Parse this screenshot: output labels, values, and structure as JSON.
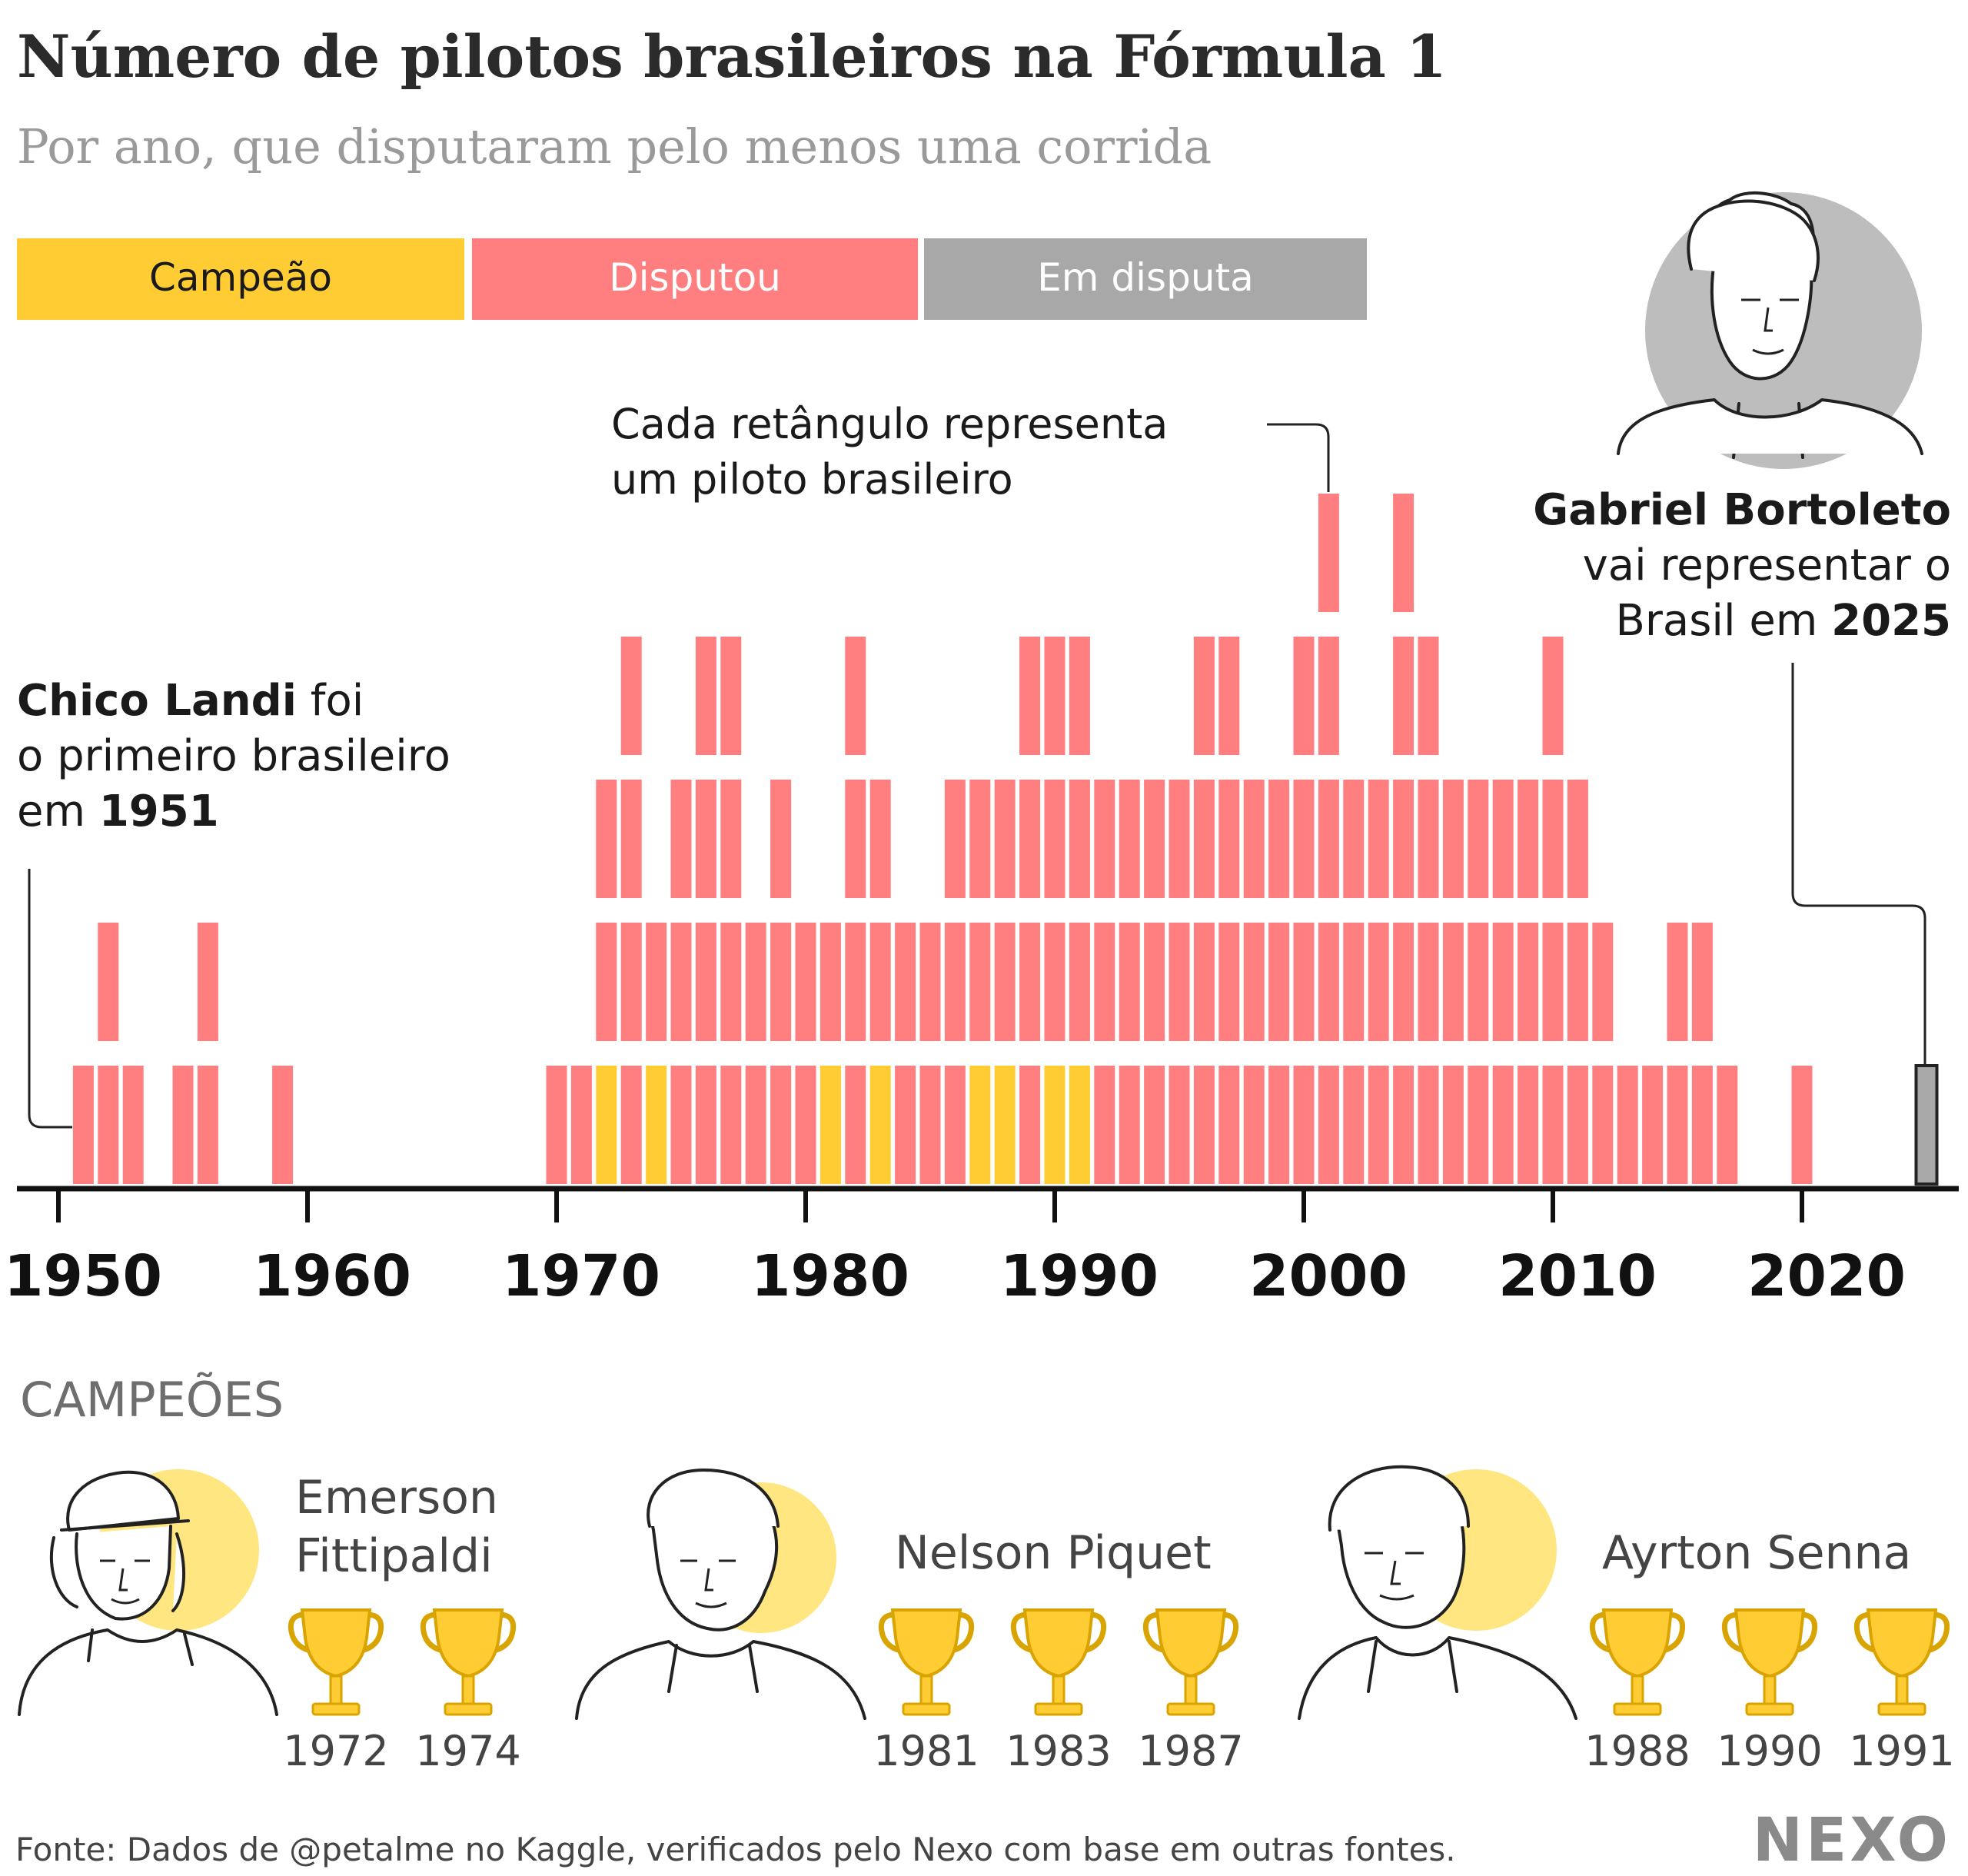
{
  "title": "Número de pilotos brasileiros na Fórmula 1",
  "subtitle": "Por ano, que disputaram pelo menos uma corrida",
  "legend": [
    {
      "label": "Campeão",
      "color": "#FFCC33",
      "text_color": "#1a1a1a"
    },
    {
      "label": "Disputou",
      "color": "#FF7F80",
      "text_color": "#ffffff"
    },
    {
      "label": "Em disputa",
      "color": "#A8A8A8",
      "text_color": "#ffffff"
    }
  ],
  "colors": {
    "champion": "#FFCC33",
    "raced": "#FF7F80",
    "ongoing": "#A8A8A8",
    "axis": "#111111",
    "halo_gray": "#BDBDBD",
    "halo_yellow": "#FFE680"
  },
  "annotations": {
    "each_rect_line1": "Cada retângulo representa",
    "each_rect_line2": "um piloto brasileiro",
    "landi_name": "Chico Landi",
    "landi_rest1": " foi",
    "landi_line2": "o primeiro brasileiro",
    "landi_line3_pre": "em ",
    "landi_year": "1951",
    "bortoleto_name": "Gabriel Bortoleto",
    "bortoleto_line2": "vai representar o",
    "bortoleto_line3_pre": "Brasil em ",
    "bortoleto_year": "2025"
  },
  "champions_heading": "CAMPEÕES",
  "champions": [
    {
      "name_lines": [
        "Emerson",
        "Fittipaldi"
      ],
      "titles": [
        "1972",
        "1974"
      ],
      "icon": "trophy-icon"
    },
    {
      "name_lines": [
        "Nelson Piquet"
      ],
      "titles": [
        "1981",
        "1983",
        "1987"
      ],
      "icon": "trophy-icon"
    },
    {
      "name_lines": [
        "Ayrton Senna"
      ],
      "titles": [
        "1988",
        "1990",
        "1991"
      ],
      "icon": "trophy-icon"
    }
  ],
  "source": "Fonte: Dados de @petalme no Kaggle, verificados pelo Nexo com base em outras fontes.",
  "brand": "NEXO",
  "chart_data": {
    "type": "bar",
    "x_ticks": [
      1950,
      1960,
      1970,
      1980,
      1990,
      2000,
      2010,
      2020
    ],
    "xlim": [
      1948,
      2026
    ],
    "ylim": [
      0,
      5
    ],
    "years": [
      1951,
      1952,
      1953,
      1955,
      1956,
      1959,
      1970,
      1971,
      1972,
      1973,
      1974,
      1975,
      1976,
      1977,
      1978,
      1979,
      1980,
      1981,
      1982,
      1983,
      1984,
      1985,
      1986,
      1987,
      1988,
      1989,
      1990,
      1991,
      1992,
      1993,
      1994,
      1995,
      1996,
      1997,
      1998,
      1999,
      2000,
      2001,
      2002,
      2003,
      2004,
      2005,
      2006,
      2007,
      2008,
      2009,
      2010,
      2011,
      2012,
      2013,
      2014,
      2015,
      2016,
      2017,
      2020,
      2025
    ],
    "drivers_per_year": [
      1,
      2,
      1,
      1,
      2,
      1,
      1,
      1,
      3,
      4,
      2,
      3,
      4,
      4,
      2,
      3,
      2,
      2,
      4,
      3,
      2,
      2,
      3,
      3,
      3,
      4,
      4,
      4,
      3,
      3,
      3,
      3,
      4,
      4,
      3,
      3,
      4,
      5,
      3,
      3,
      5,
      4,
      3,
      3,
      3,
      3,
      4,
      3,
      2,
      1,
      1,
      2,
      2,
      1,
      1,
      1
    ],
    "champion_years": [
      1972,
      1974,
      1981,
      1983,
      1987,
      1988,
      1990,
      1991
    ],
    "ongoing_years": [
      2025
    ]
  }
}
